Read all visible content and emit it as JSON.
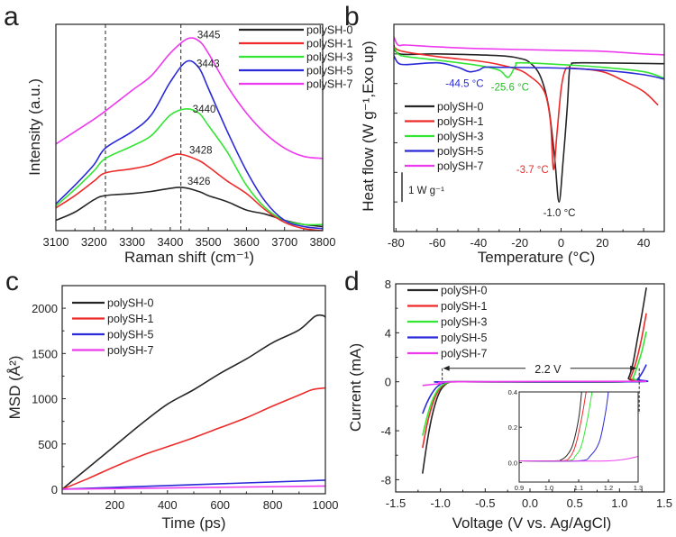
{
  "colors": {
    "polySH-0": "#262626",
    "polySH-1": "#ee2a2a",
    "polySH-3": "#33e633",
    "polySH-5": "#2a2ad8",
    "polySH-7": "#ee3aee"
  },
  "chart_data": [
    {
      "panel": "a",
      "type": "line",
      "xlabel": "Raman shift (cm⁻¹)",
      "ylabel": "Intensity (a.u.)",
      "xlim": [
        3100,
        3800
      ],
      "ylim": [
        0,
        1
      ],
      "xticks": [
        3100,
        3200,
        3300,
        3400,
        3500,
        3600,
        3700,
        3800
      ],
      "yticks": [],
      "legend": "top-right",
      "vlines": [
        3230,
        3428
      ],
      "series": [
        {
          "name": "polySH-0",
          "x": [
            3100,
            3150,
            3200,
            3230,
            3300,
            3350,
            3426,
            3475,
            3500,
            3550,
            3600,
            3650,
            3700,
            3750,
            3800
          ],
          "y": [
            0.05,
            0.09,
            0.15,
            0.17,
            0.18,
            0.19,
            0.21,
            0.19,
            0.17,
            0.14,
            0.1,
            0.08,
            0.05,
            0.03,
            0.02
          ]
        },
        {
          "name": "polySH-1",
          "x": [
            3100,
            3150,
            3200,
            3230,
            3300,
            3350,
            3400,
            3428,
            3475,
            3500,
            3550,
            3600,
            3650,
            3700,
            3750,
            3800
          ],
          "y": [
            0.11,
            0.17,
            0.24,
            0.28,
            0.3,
            0.32,
            0.36,
            0.37,
            0.34,
            0.31,
            0.24,
            0.18,
            0.1,
            0.04,
            0.01,
            0.0
          ]
        },
        {
          "name": "polySH-3",
          "x": [
            3100,
            3150,
            3200,
            3230,
            3300,
            3350,
            3400,
            3440,
            3475,
            3500,
            3550,
            3600,
            3650,
            3700,
            3750,
            3800
          ],
          "y": [
            0.12,
            0.2,
            0.29,
            0.35,
            0.41,
            0.46,
            0.56,
            0.59,
            0.57,
            0.51,
            0.38,
            0.22,
            0.11,
            0.05,
            0.03,
            0.03
          ]
        },
        {
          "name": "polySH-5",
          "x": [
            3100,
            3150,
            3200,
            3230,
            3300,
            3350,
            3400,
            3443,
            3475,
            3500,
            3550,
            3600,
            3650,
            3700,
            3750,
            3800
          ],
          "y": [
            0.13,
            0.22,
            0.32,
            0.4,
            0.48,
            0.56,
            0.72,
            0.82,
            0.79,
            0.69,
            0.48,
            0.29,
            0.14,
            0.05,
            0.02,
            0.01
          ]
        },
        {
          "name": "polySH-7",
          "x": [
            3100,
            3150,
            3200,
            3230,
            3300,
            3350,
            3400,
            3445,
            3475,
            3500,
            3550,
            3600,
            3650,
            3700,
            3750,
            3800
          ],
          "y": [
            0.42,
            0.48,
            0.54,
            0.58,
            0.68,
            0.75,
            0.86,
            0.93,
            0.92,
            0.86,
            0.7,
            0.57,
            0.47,
            0.4,
            0.36,
            0.35
          ]
        }
      ],
      "annotations": [
        {
          "text": "3445",
          "x": 3471,
          "y": 0.95,
          "color": "#222"
        },
        {
          "text": "3443",
          "x": 3469,
          "y": 0.81,
          "color": "#222"
        },
        {
          "text": "3440",
          "x": 3459,
          "y": 0.59,
          "color": "#222"
        },
        {
          "text": "3428",
          "x": 3450,
          "y": 0.39,
          "color": "#222"
        },
        {
          "text": "3426",
          "x": 3445,
          "y": 0.24,
          "color": "#222"
        }
      ]
    },
    {
      "panel": "b",
      "type": "line",
      "xlabel": "Temperature (°C)",
      "ylabel": "Heat flow (W g⁻¹,Exo up)",
      "xlim": [
        -81,
        50
      ],
      "ylim": [
        -6,
        1
      ],
      "xticks": [
        -80,
        -60,
        -40,
        -20,
        0,
        20,
        40
      ],
      "yticks_unlabeled": [
        0,
        -1,
        -2,
        -3,
        -4,
        -5
      ],
      "legend": "middle-left",
      "scale_bar": {
        "label": "1 W g⁻¹",
        "value": 1
      },
      "series": [
        {
          "name": "polySH-0",
          "x": [
            -81,
            -78,
            -60,
            -30,
            -20,
            -15,
            -10,
            -6,
            -3,
            -1,
            1,
            3,
            4,
            5,
            10,
            50
          ],
          "y": [
            0.3,
            0,
            0,
            -0.06,
            -0.15,
            -0.3,
            -0.76,
            -1.8,
            -3.6,
            -5.0,
            -3.6,
            -1.8,
            -0.6,
            -0.36,
            -0.3,
            -0.33
          ]
        },
        {
          "name": "polySH-1",
          "x": [
            -81,
            -77,
            -60,
            -40,
            -30,
            -20,
            -15,
            -10,
            -7,
            -5,
            -3.7,
            -2,
            0,
            2,
            5,
            20,
            30,
            40,
            47
          ],
          "y": [
            0.24,
            0.09,
            -0.09,
            -0.24,
            -0.36,
            -0.55,
            -0.76,
            -1.06,
            -1.5,
            -2.4,
            -3.9,
            -2.7,
            -1.2,
            -0.55,
            -0.48,
            -0.6,
            -0.9,
            -1.27,
            -1.73
          ]
        },
        {
          "name": "polySH-3",
          "x": [
            -81,
            -79,
            -75,
            -60,
            -40,
            -30,
            -25.6,
            -22,
            -20,
            0,
            20,
            40,
            50
          ],
          "y": [
            0.24,
            0,
            -0.09,
            -0.21,
            -0.39,
            -0.55,
            -0.79,
            -0.39,
            -0.3,
            -0.36,
            -0.45,
            -0.6,
            -0.82
          ]
        },
        {
          "name": "polySH-5",
          "x": [
            -81,
            -79,
            -75,
            -60,
            -50,
            -44.5,
            -40,
            -37,
            -30,
            0,
            20,
            40,
            50
          ],
          "y": [
            -0.06,
            -0.3,
            -0.36,
            -0.3,
            -0.45,
            -0.6,
            -0.55,
            -0.45,
            -0.45,
            -0.48,
            -0.55,
            -0.7,
            -0.85
          ]
        },
        {
          "name": "polySH-7",
          "x": [
            -81,
            -79,
            -75,
            -60,
            -40,
            0,
            20,
            40,
            50
          ],
          "y": [
            0.58,
            0.3,
            0.3,
            0.24,
            0.18,
            0.12,
            0.09,
            0,
            -0.03
          ]
        }
      ],
      "annotations": [
        {
          "text": "-44.5 °C",
          "x": -56,
          "y": -1.0,
          "color": "#2a2ad8"
        },
        {
          "text": "-25.6 °C",
          "x": -34,
          "y": -1.12,
          "color": "#22c022"
        },
        {
          "text": "-3.7 °C",
          "x": -21.7,
          "y": -3.9,
          "color": "#ee2a2a"
        },
        {
          "text": "-1.0 °C",
          "x": -8.7,
          "y": -5.36,
          "color": "#222"
        }
      ]
    },
    {
      "panel": "c",
      "type": "line",
      "xlabel": "Time (ps)",
      "ylabel": "MSD (Å²)",
      "xlim": [
        0,
        1000
      ],
      "ylim": [
        -50,
        2250
      ],
      "xticks": [
        200,
        400,
        600,
        800,
        1000
      ],
      "yticks": [
        0,
        500,
        1000,
        1500,
        2000
      ],
      "legend": "top-left",
      "series": [
        {
          "name": "polySH-0",
          "x": [
            0,
            100,
            200,
            300,
            400,
            500,
            600,
            700,
            800,
            900,
            960,
            990,
            1000
          ],
          "y": [
            0,
            240,
            480,
            720,
            940,
            1100,
            1280,
            1440,
            1620,
            1760,
            1910,
            1920,
            1900
          ]
        },
        {
          "name": "polySH-1",
          "x": [
            0,
            100,
            200,
            300,
            400,
            500,
            600,
            700,
            800,
            900,
            950,
            1000
          ],
          "y": [
            0,
            120,
            250,
            370,
            470,
            570,
            680,
            790,
            920,
            1040,
            1100,
            1120
          ]
        },
        {
          "name": "polySH-5",
          "x": [
            0,
            1000
          ],
          "y": [
            0,
            100
          ]
        },
        {
          "name": "polySH-7",
          "x": [
            0,
            1000
          ],
          "y": [
            0,
            35
          ]
        }
      ],
      "annotations": []
    },
    {
      "panel": "d",
      "type": "line",
      "xlabel": "Voltage (V vs. Ag/AgCl)",
      "ylabel": "Current (mA)",
      "xlim": [
        -1.5,
        1.5
      ],
      "ylim": [
        -9,
        8
      ],
      "xticks": [
        -1.5,
        -1.0,
        -0.5,
        0.0,
        0.5,
        1.0,
        1.5
      ],
      "yticks": [
        -8,
        -4,
        0,
        4,
        8
      ],
      "legend": "top-left",
      "window": {
        "label": "2.2 V",
        "from": -0.98,
        "to": 1.2,
        "y": 1.1
      },
      "series": [
        {
          "name": "polySH-0",
          "x": [
            -1.2,
            -1.15,
            -1.1,
            -1.05,
            -1.0,
            -0.95,
            -0.9,
            -0.8,
            1.05,
            1.1,
            1.15,
            1.2,
            1.25,
            1.3
          ],
          "y": [
            -7.5,
            -5,
            -3,
            -1.6,
            -0.7,
            -0.25,
            -0.05,
            0,
            0,
            0.3,
            1.5,
            3.5,
            5.5,
            7.7
          ]
        },
        {
          "name": "polySH-1",
          "x": [
            -1.2,
            -1.15,
            -1.1,
            -1.05,
            -1.0,
            -0.95,
            -0.9,
            -0.8,
            1.08,
            1.12,
            1.18,
            1.24,
            1.3
          ],
          "y": [
            -5.4,
            -3.5,
            -2.1,
            -1.1,
            -0.5,
            -0.18,
            -0.04,
            0,
            0,
            0.3,
            1.5,
            3.3,
            5.6
          ]
        },
        {
          "name": "polySH-3",
          "x": [
            -1.2,
            -1.15,
            -1.1,
            -1.05,
            -1.0,
            -0.95,
            -0.9,
            -0.8,
            1.1,
            1.15,
            1.2,
            1.25,
            1.3
          ],
          "y": [
            -4.4,
            -2.9,
            -1.7,
            -0.9,
            -0.4,
            -0.15,
            -0.03,
            0,
            0,
            0.3,
            1.3,
            2.5,
            4.1
          ]
        },
        {
          "name": "polySH-5",
          "x": [
            -1.2,
            -1.15,
            -1.1,
            -1.05,
            -1.0,
            -0.95,
            -0.9,
            1.15,
            1.2,
            1.25,
            1.3
          ],
          "y": [
            -2.6,
            -1.7,
            -1.0,
            -0.5,
            -0.2,
            -0.06,
            0,
            0,
            0.2,
            0.7,
            1.4
          ]
        },
        {
          "name": "polySH-7",
          "x": [
            -1.2,
            -1.0,
            -0.8,
            1.3
          ],
          "y": [
            -0.3,
            -0.15,
            0,
            0.04
          ]
        }
      ],
      "annotations": [],
      "inset": {
        "xlim": [
          0.9,
          1.3
        ],
        "ylim": [
          -0.11,
          0.4
        ],
        "xticks": [
          0.9,
          1.0,
          1.1,
          1.2,
          1.3
        ],
        "yticks": [
          0.0,
          0.2,
          0.4
        ],
        "series": [
          {
            "name": "polySH-0",
            "x": [
              0.9,
              1.02,
              1.04,
              1.06,
              1.08,
              1.1,
              1.11
            ],
            "y": [
              0.01,
              0.01,
              0.015,
              0.04,
              0.1,
              0.25,
              0.4
            ]
          },
          {
            "name": "polySH-1",
            "x": [
              0.9,
              1.04,
              1.07,
              1.09,
              1.11,
              1.125
            ],
            "y": [
              0.01,
              0.01,
              0.03,
              0.1,
              0.25,
              0.4
            ]
          },
          {
            "name": "polySH-3",
            "x": [
              0.9,
              1.06,
              1.09,
              1.11,
              1.13,
              1.145
            ],
            "y": [
              0.01,
              0.01,
              0.04,
              0.1,
              0.25,
              0.4
            ]
          },
          {
            "name": "polySH-5",
            "x": [
              0.9,
              1.1,
              1.14,
              1.17,
              1.19,
              1.2
            ],
            "y": [
              0.01,
              0.01,
              0.04,
              0.12,
              0.28,
              0.4
            ]
          },
          {
            "name": "polySH-7",
            "x": [
              0.9,
              1.2,
              1.3
            ],
            "y": [
              0.01,
              0.01,
              0.035
            ]
          }
        ]
      }
    }
  ]
}
